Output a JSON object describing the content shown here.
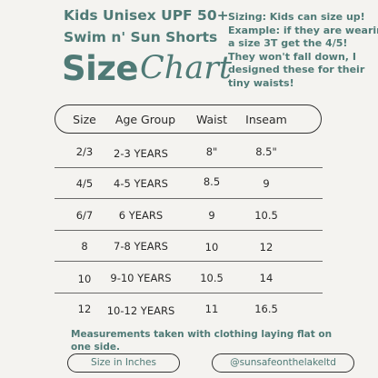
{
  "header": {
    "title_line1": "Kids Unisex UPF 50+",
    "title_line2": "Swim n' Sun Shorts",
    "size_word": "Size",
    "chart_word": "Chart"
  },
  "sizing_note": {
    "line1": "Sizing: Kids can size up!",
    "line2": "Example: if they are wearing",
    "line3": "a size 3T get the 4/5!",
    "line4": "They won't fall down, I",
    "line5": "designed these for their",
    "line6": "tiny waists!"
  },
  "table": {
    "columns": [
      "Size",
      "Age Group",
      "Waist",
      "Inseam"
    ],
    "rows": [
      [
        "2/3",
        "2-3 YEARS",
        "8\"",
        "8.5\""
      ],
      [
        "4/5",
        "4-5 YEARS",
        "8.5",
        "9"
      ],
      [
        "6/7",
        "6 YEARS",
        "9",
        "10.5"
      ],
      [
        "8",
        "7-8 YEARS",
        "10",
        "12"
      ],
      [
        "10",
        "9-10 YEARS",
        "10.5",
        "14"
      ],
      [
        "12",
        "10-12 YEARS",
        "11",
        "16.5"
      ]
    ]
  },
  "footnote": {
    "line1": "Measurements taken with clothing laying flat on",
    "line2": "one side."
  },
  "badges": {
    "units": "Size in Inches",
    "handle": "@sunsafeonthelakeltd"
  },
  "colors": {
    "accent": "#4f7a76",
    "background": "#f4f3f0",
    "text": "#2a2a2a"
  }
}
